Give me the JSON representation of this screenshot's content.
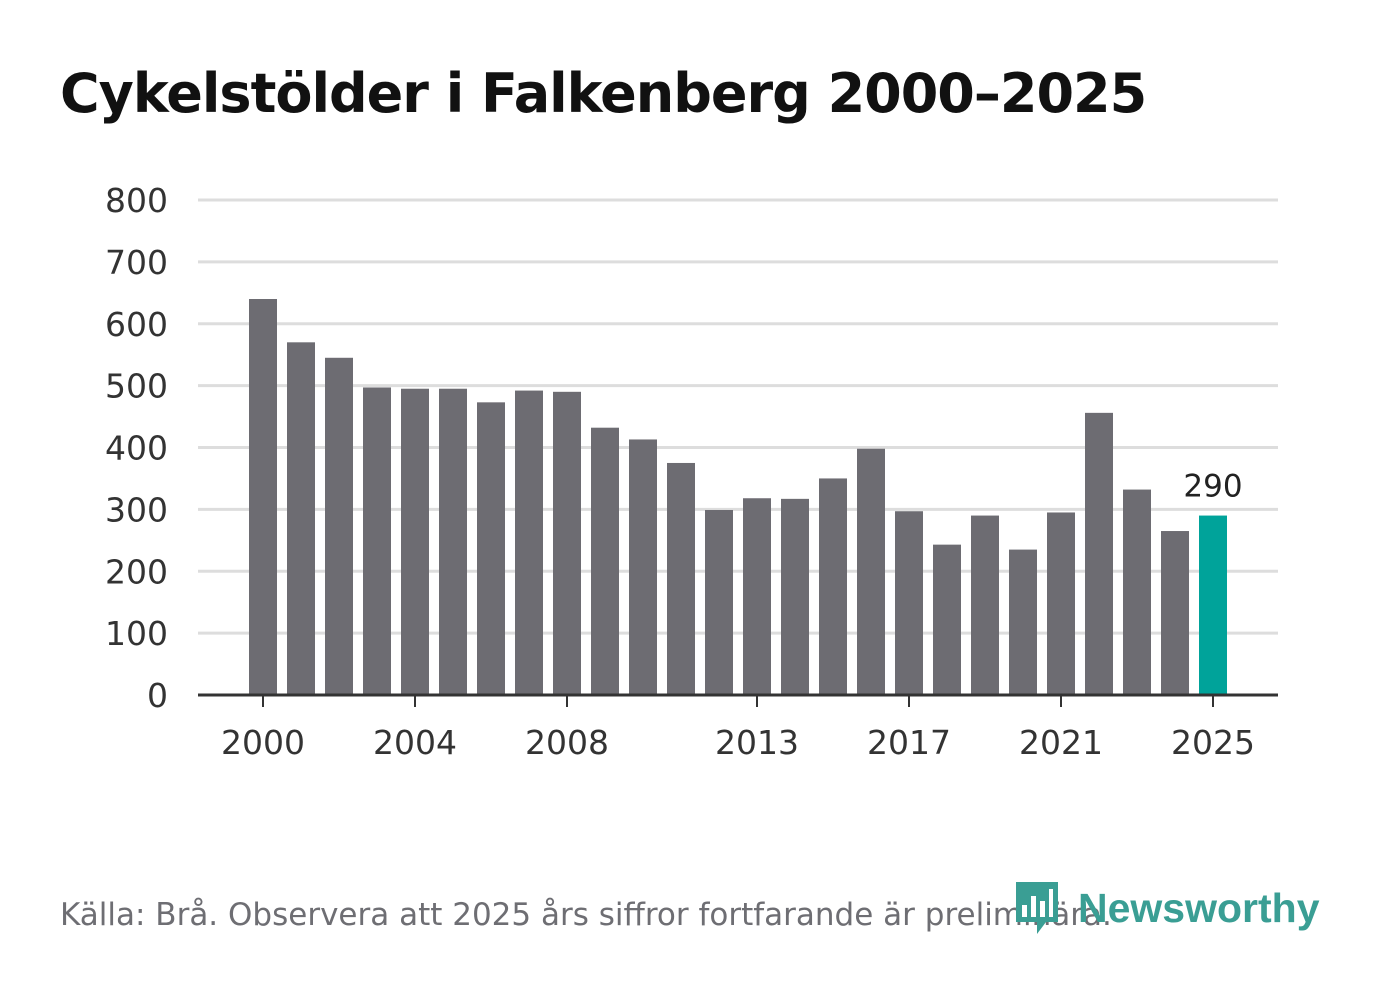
{
  "chart_data": {
    "type": "bar",
    "title": "Cykelstölder i Falkenberg 2000–2025",
    "x": [
      2000,
      2001,
      2002,
      2003,
      2004,
      2005,
      2006,
      2007,
      2008,
      2009,
      2010,
      2011,
      2012,
      2013,
      2014,
      2015,
      2016,
      2017,
      2018,
      2019,
      2020,
      2021,
      2022,
      2023,
      2024,
      2025
    ],
    "values": [
      640,
      570,
      545,
      497,
      495,
      495,
      473,
      492,
      490,
      432,
      413,
      375,
      299,
      318,
      317,
      350,
      398,
      297,
      243,
      290,
      235,
      295,
      456,
      332,
      265,
      290
    ],
    "xticks": [
      "2000",
      "2004",
      "2008",
      "2013",
      "2017",
      "2021",
      "2025"
    ],
    "yticks": [
      "0",
      "100",
      "200",
      "300",
      "400",
      "500",
      "600",
      "700",
      "800"
    ],
    "ylim": [
      0,
      800
    ],
    "xlabel": "",
    "ylabel": "",
    "highlight": {
      "label": "2025",
      "value_label": "290"
    },
    "colors": {
      "bar": "#6d6c72",
      "highlight": "#00a39a",
      "grid": "#dddddd",
      "axis": "#333333",
      "text": "#333333"
    }
  },
  "footer": {
    "source": "Källa: Brå. Observera att 2025 års siffror fortfarande är preliminära."
  },
  "brand": {
    "name": "Newsworthy",
    "icon": "newsworthy-logo-icon",
    "color": "#3a9e94"
  }
}
